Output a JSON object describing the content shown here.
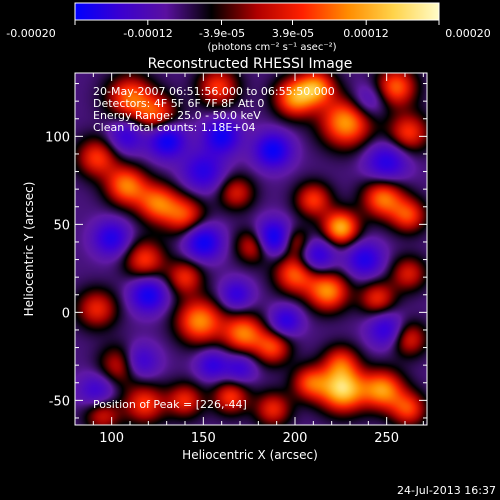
{
  "colorbar": {
    "tick_labels": [
      "-0.00020",
      "-0.00012",
      "-3.9e-05",
      "3.9e-05",
      "0.00012",
      "0.00020"
    ],
    "tick_values": [
      -0.0002,
      -0.00012,
      -3.9e-05,
      3.9e-05,
      0.00012,
      0.0002
    ],
    "range": [
      -0.0002,
      0.0002
    ],
    "unit_text": "(photons cm⁻² s⁻¹ asec⁻²)",
    "colors": [
      "#0000ff",
      "#3a00d0",
      "#5a10a0",
      "#000000",
      "#b00000",
      "#ff2000",
      "#ff8c00",
      "#ffd34a",
      "#fffcc8"
    ]
  },
  "chart_data": {
    "type": "heatmap",
    "title": "Reconstructed RHESSI Image",
    "xlabel": "Heliocentric X (arcsec)",
    "ylabel": "Heliocentric Y (arcsec)",
    "xlim": [
      80,
      272
    ],
    "ylim": [
      -64,
      136
    ],
    "x_ticks": [
      100,
      150,
      200,
      250
    ],
    "x_tick_labels": [
      "100",
      "150",
      "200",
      "250"
    ],
    "y_ticks": [
      -50,
      0,
      50,
      100
    ],
    "y_tick_labels": [
      "-50",
      "0",
      "50",
      "100"
    ],
    "annotations": [
      "20-May-2007 06:51:56.000 to 06:55:50.000",
      "Detectors: 4F 5F 6F 7F 8F  Att 0",
      "Energy Range: 25.0 - 50.0 keV",
      "Clean    Total counts: 1.18E+04"
    ],
    "peak_text": "Position of Peak = [226,-44]",
    "peak": [
      226,
      -44
    ],
    "blobs": [
      {
        "x": 110,
        "y": 122,
        "a": 0.7,
        "s": 9
      },
      {
        "x": 125,
        "y": 112,
        "a": 0.6,
        "s": 8
      },
      {
        "x": 158,
        "y": 128,
        "a": 0.6,
        "s": 8
      },
      {
        "x": 200,
        "y": 122,
        "a": 0.8,
        "s": 8
      },
      {
        "x": 212,
        "y": 128,
        "a": 0.7,
        "s": 7
      },
      {
        "x": 228,
        "y": 108,
        "a": 0.85,
        "s": 10
      },
      {
        "x": 255,
        "y": 128,
        "a": 0.7,
        "s": 8
      },
      {
        "x": 262,
        "y": 102,
        "a": 0.6,
        "s": 8
      },
      {
        "x": 92,
        "y": 88,
        "a": 0.6,
        "s": 8
      },
      {
        "x": 108,
        "y": 72,
        "a": 0.75,
        "s": 8
      },
      {
        "x": 125,
        "y": 62,
        "a": 0.7,
        "s": 8
      },
      {
        "x": 140,
        "y": 55,
        "a": 0.6,
        "s": 8
      },
      {
        "x": 168,
        "y": 68,
        "a": 0.5,
        "s": 7
      },
      {
        "x": 210,
        "y": 64,
        "a": 0.6,
        "s": 7
      },
      {
        "x": 225,
        "y": 48,
        "a": 0.9,
        "s": 7
      },
      {
        "x": 248,
        "y": 65,
        "a": 0.75,
        "s": 8
      },
      {
        "x": 262,
        "y": 55,
        "a": 0.6,
        "s": 7
      },
      {
        "x": 118,
        "y": 30,
        "a": 0.6,
        "s": 8
      },
      {
        "x": 140,
        "y": 20,
        "a": 0.55,
        "s": 7
      },
      {
        "x": 178,
        "y": 38,
        "a": 0.6,
        "s": 7
      },
      {
        "x": 200,
        "y": 40,
        "a": 0.5,
        "s": 6
      },
      {
        "x": 200,
        "y": 22,
        "a": 0.7,
        "s": 8
      },
      {
        "x": 218,
        "y": 12,
        "a": 0.8,
        "s": 8
      },
      {
        "x": 245,
        "y": 8,
        "a": 0.55,
        "s": 7
      },
      {
        "x": 262,
        "y": 22,
        "a": 0.5,
        "s": 7
      },
      {
        "x": 92,
        "y": 2,
        "a": 0.55,
        "s": 8
      },
      {
        "x": 148,
        "y": -5,
        "a": 0.8,
        "s": 9
      },
      {
        "x": 172,
        "y": -12,
        "a": 0.75,
        "s": 8
      },
      {
        "x": 188,
        "y": -20,
        "a": 0.6,
        "s": 7
      },
      {
        "x": 105,
        "y": -30,
        "a": 0.55,
        "s": 8
      },
      {
        "x": 225,
        "y": -28,
        "a": 0.5,
        "s": 7
      },
      {
        "x": 262,
        "y": -15,
        "a": 0.55,
        "s": 7
      },
      {
        "x": 118,
        "y": -52,
        "a": 0.6,
        "s": 8
      },
      {
        "x": 140,
        "y": -50,
        "a": 0.55,
        "s": 7
      },
      {
        "x": 165,
        "y": -48,
        "a": 0.6,
        "s": 7
      },
      {
        "x": 188,
        "y": -55,
        "a": 0.55,
        "s": 7
      },
      {
        "x": 208,
        "y": -40,
        "a": 0.6,
        "s": 7
      },
      {
        "x": 226,
        "y": -44,
        "a": 1.0,
        "s": 9
      },
      {
        "x": 248,
        "y": -44,
        "a": 0.8,
        "s": 8
      },
      {
        "x": 262,
        "y": -55,
        "a": 0.6,
        "s": 7
      },
      {
        "x": 95,
        "y": -58,
        "a": 0.5,
        "s": 7
      },
      {
        "x": 130,
        "y": 98,
        "a": -0.8,
        "s": 7
      },
      {
        "x": 160,
        "y": 100,
        "a": -0.7,
        "s": 7
      },
      {
        "x": 188,
        "y": 92,
        "a": -0.75,
        "s": 7
      },
      {
        "x": 150,
        "y": 80,
        "a": -0.55,
        "s": 8
      },
      {
        "x": 108,
        "y": 100,
        "a": -0.5,
        "s": 7
      },
      {
        "x": 250,
        "y": 85,
        "a": -0.6,
        "s": 8
      },
      {
        "x": 188,
        "y": 42,
        "a": -0.9,
        "s": 7
      },
      {
        "x": 212,
        "y": 32,
        "a": -0.6,
        "s": 7
      },
      {
        "x": 150,
        "y": 40,
        "a": -0.75,
        "s": 7
      },
      {
        "x": 100,
        "y": 42,
        "a": -0.6,
        "s": 7
      },
      {
        "x": 120,
        "y": 10,
        "a": -0.7,
        "s": 7
      },
      {
        "x": 238,
        "y": 30,
        "a": -0.6,
        "s": 7
      },
      {
        "x": 168,
        "y": 10,
        "a": -0.5,
        "s": 6
      },
      {
        "x": 115,
        "y": -28,
        "a": -0.55,
        "s": 7
      },
      {
        "x": 250,
        "y": -10,
        "a": -0.55,
        "s": 7
      },
      {
        "x": 170,
        "y": -32,
        "a": -0.45,
        "s": 6
      },
      {
        "x": 195,
        "y": -5,
        "a": -0.55,
        "s": 6
      },
      {
        "x": 155,
        "y": -30,
        "a": -0.5,
        "s": 6
      },
      {
        "x": 92,
        "y": -45,
        "a": -0.45,
        "s": 7
      },
      {
        "x": 240,
        "y": 120,
        "a": -0.4,
        "s": 7
      }
    ]
  },
  "footer": {
    "date": "24-Jul-2013 16:37"
  }
}
